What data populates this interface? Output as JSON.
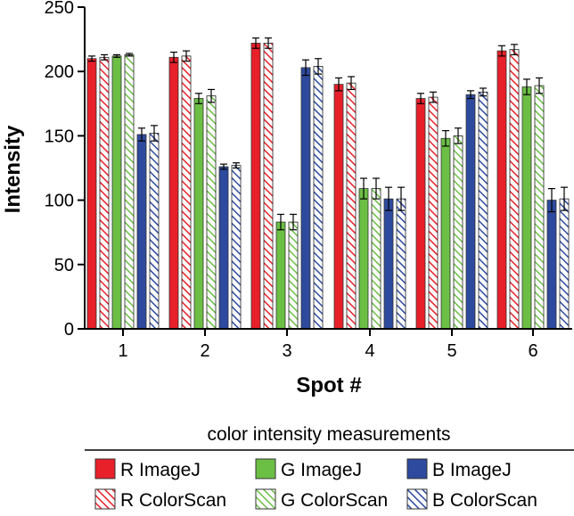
{
  "chart_data": {
    "type": "bar",
    "xlabel": "Spot #",
    "ylabel": "Intensity",
    "ylim": [
      0,
      250
    ],
    "yticks": [
      0,
      50,
      100,
      150,
      200,
      250
    ],
    "categories": [
      "1",
      "2",
      "3",
      "4",
      "5",
      "6"
    ],
    "grid": false,
    "legend": {
      "title": "color intensity measurements",
      "placement": "bottom",
      "entries": [
        "R ImageJ",
        "G ImageJ",
        "B ImageJ",
        "R ColorScan",
        "G ColorScan",
        "B ColorScan"
      ]
    },
    "series": [
      {
        "name": "R ImageJ",
        "color": "#e8202a",
        "pattern": "solid",
        "values": [
          210,
          211,
          222,
          190,
          179,
          216
        ],
        "errors": [
          2,
          4,
          4,
          5,
          4,
          4
        ]
      },
      {
        "name": "R ColorScan",
        "color": "#e8202a",
        "pattern": "hatched",
        "values": [
          211,
          212,
          222,
          191,
          180,
          217
        ],
        "errors": [
          2,
          4,
          4,
          5,
          4,
          4
        ]
      },
      {
        "name": "G ImageJ",
        "color": "#6cbf45",
        "pattern": "solid",
        "values": [
          212,
          179,
          83,
          109,
          148,
          188
        ],
        "errors": [
          1,
          4,
          6,
          8,
          6,
          6
        ]
      },
      {
        "name": "G ColorScan",
        "color": "#6cbf45",
        "pattern": "hatched",
        "values": [
          213,
          181,
          83,
          109,
          150,
          189
        ],
        "errors": [
          1,
          5,
          6,
          8,
          6,
          6
        ]
      },
      {
        "name": "B ImageJ",
        "color": "#2d4a9e",
        "pattern": "solid",
        "values": [
          151,
          126,
          203,
          101,
          182,
          100
        ],
        "errors": [
          5,
          2,
          6,
          9,
          3,
          9
        ]
      },
      {
        "name": "B ColorScan",
        "color": "#2d4a9e",
        "pattern": "hatched",
        "values": [
          152,
          127,
          204,
          101,
          184,
          101
        ],
        "errors": [
          6,
          2,
          6,
          9,
          3,
          9
        ]
      }
    ]
  }
}
